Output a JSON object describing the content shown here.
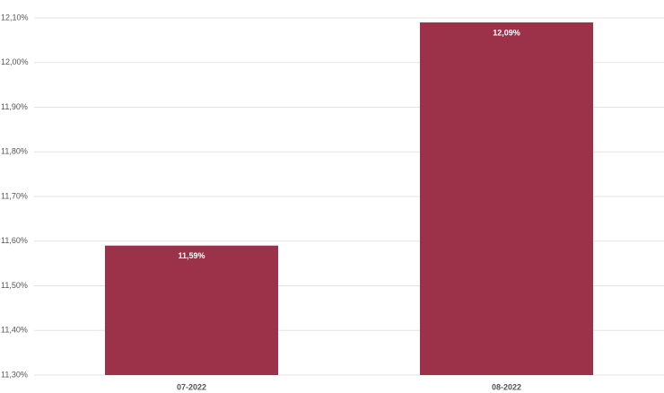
{
  "chart_data": {
    "type": "bar",
    "categories": [
      "07-2022",
      "08-2022"
    ],
    "values": [
      11.59,
      12.09
    ],
    "value_labels": [
      "11,59%",
      "12,09%"
    ],
    "color": "#9b3249",
    "ylim": [
      11.3,
      12.1
    ],
    "yticks": [
      {
        "value": 11.3,
        "label": "11,30%"
      },
      {
        "value": 11.4,
        "label": "11,40%"
      },
      {
        "value": 11.5,
        "label": "11,50%"
      },
      {
        "value": 11.6,
        "label": "11,60%"
      },
      {
        "value": 11.7,
        "label": "11,70%"
      },
      {
        "value": 11.8,
        "label": "11,80%"
      },
      {
        "value": 11.9,
        "label": "11,90%"
      },
      {
        "value": 12.0,
        "label": "12,00%"
      },
      {
        "value": 12.1,
        "label": "12,10%"
      }
    ],
    "grid": true
  }
}
